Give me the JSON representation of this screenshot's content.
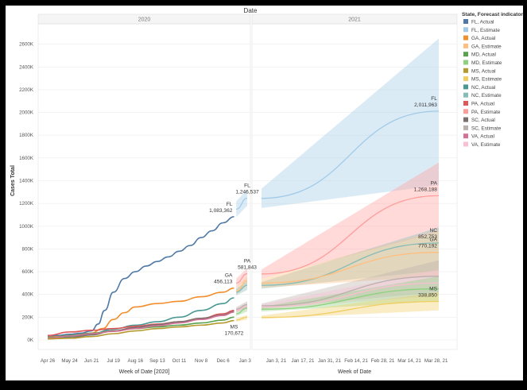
{
  "chart_data": {
    "type": "line",
    "title": "Date",
    "ylabel": "Cases Total",
    "ylim": [
      0,
      2800000
    ],
    "yticks": [
      0,
      200000,
      400000,
      600000,
      800000,
      1000000,
      1200000,
      1400000,
      1600000,
      1800000,
      2000000,
      2200000,
      2400000,
      2600000
    ],
    "ytick_labels": [
      "0K",
      "200K",
      "400K",
      "600K",
      "800K",
      "1000K",
      "1200K",
      "1400K",
      "1600K",
      "1800K",
      "2000K",
      "2200K",
      "2400K",
      "2600K"
    ],
    "panels": [
      {
        "header": "2020",
        "xlabel": "Week of Date [2020]",
        "x_ticks": [
          "Apr 26",
          "May 24",
          "Jun 21",
          "Jul 19",
          "Aug 16",
          "Sep 13",
          "Oct 11",
          "Nov 8",
          "Dec 6",
          "Jan 3"
        ],
        "xlim": [
          0,
          9.1
        ]
      },
      {
        "header": "2021",
        "xlabel": "Week of Date",
        "x_ticks": [
          "Jan 3, 21",
          "Jan 17, 21",
          "Jan 31, 21",
          "Feb 14, 21",
          "Feb 28, 21",
          "Mar 14, 21",
          "Mar 28, 21"
        ],
        "xlim": [
          -0.55,
          6.25
        ]
      }
    ],
    "legend_title": "State, Forecast indicator",
    "legend": [
      {
        "label": "FL, Actual",
        "color": "#4e79a7"
      },
      {
        "label": "FL, Estimate",
        "color": "#a0cbe8"
      },
      {
        "label": "GA, Actual",
        "color": "#f28e2b"
      },
      {
        "label": "GA, Estimate",
        "color": "#ffbe7d"
      },
      {
        "label": "MD, Actual",
        "color": "#59a14f"
      },
      {
        "label": "MD, Estimate",
        "color": "#8cd17d"
      },
      {
        "label": "MS, Actual",
        "color": "#b6992d"
      },
      {
        "label": "MS, Estimate",
        "color": "#f1ce63"
      },
      {
        "label": "NC, Actual",
        "color": "#499894"
      },
      {
        "label": "NC, Estimate",
        "color": "#86bcb6"
      },
      {
        "label": "PA, Actual",
        "color": "#e15759"
      },
      {
        "label": "PA, Estimate",
        "color": "#ff9d9a"
      },
      {
        "label": "SC, Actual",
        "color": "#79706e"
      },
      {
        "label": "SC, Estimate",
        "color": "#bab0ac"
      },
      {
        "label": "VA, Actual",
        "color": "#d37295"
      },
      {
        "label": "VA, Estimate",
        "color": "#fabfd2"
      }
    ],
    "series": [
      {
        "state": "FL",
        "kind": "actual",
        "panel": 0,
        "color": "#4e79a7",
        "x": [
          0,
          0.5,
          1,
          1.5,
          2,
          2.3,
          2.6,
          3,
          3.5,
          4,
          4.5,
          5,
          5.5,
          6,
          6.5,
          7,
          7.5,
          8,
          8.5
        ],
        "y": [
          30000,
          40000,
          50000,
          60000,
          80000,
          140000,
          260000,
          420000,
          540000,
          600000,
          650000,
          690000,
          730000,
          780000,
          830000,
          900000,
          960000,
          1030000,
          1083362
        ]
      },
      {
        "state": "GA",
        "kind": "actual",
        "panel": 0,
        "color": "#f28e2b",
        "x": [
          0,
          1,
          2,
          2.5,
          3,
          3.5,
          4,
          5,
          6,
          7,
          8,
          8.5
        ],
        "y": [
          25000,
          35000,
          60000,
          100000,
          180000,
          240000,
          290000,
          320000,
          340000,
          380000,
          420000,
          456113
        ]
      },
      {
        "state": "NC",
        "kind": "actual",
        "panel": 0,
        "color": "#499894",
        "x": [
          0,
          1,
          2,
          3,
          4,
          5,
          6,
          7,
          8,
          8.5
        ],
        "y": [
          20000,
          30000,
          55000,
          95000,
          130000,
          160000,
          200000,
          260000,
          320000,
          370000
        ]
      },
      {
        "state": "PA",
        "kind": "actual",
        "panel": 0,
        "color": "#e15759",
        "x": [
          0,
          1,
          2,
          3,
          4,
          5,
          6,
          7,
          8,
          8.5
        ],
        "y": [
          40000,
          70000,
          85000,
          100000,
          120000,
          140000,
          160000,
          190000,
          230000,
          260000
        ]
      },
      {
        "state": "MD",
        "kind": "actual",
        "panel": 0,
        "color": "#59a14f",
        "x": [
          0,
          1,
          2,
          3,
          4,
          5,
          6,
          7,
          8,
          8.5
        ],
        "y": [
          15000,
          40000,
          60000,
          80000,
          100000,
          115000,
          130000,
          150000,
          175000,
          200000
        ]
      },
      {
        "state": "SC",
        "kind": "actual",
        "panel": 0,
        "color": "#79706e",
        "x": [
          0,
          1,
          2,
          3,
          4,
          5,
          6,
          7,
          8,
          8.5
        ],
        "y": [
          10000,
          20000,
          45000,
          80000,
          110000,
          135000,
          160000,
          190000,
          220000,
          250000
        ]
      },
      {
        "state": "VA",
        "kind": "actual",
        "panel": 0,
        "color": "#d37295",
        "x": [
          0,
          1,
          2,
          3,
          4,
          5,
          6,
          7,
          8,
          8.5
        ],
        "y": [
          15000,
          35000,
          55000,
          75000,
          100000,
          125000,
          150000,
          180000,
          215000,
          245000
        ]
      },
      {
        "state": "MS",
        "kind": "actual",
        "panel": 0,
        "color": "#b6992d",
        "x": [
          0,
          1,
          2,
          3,
          4,
          5,
          6,
          7,
          8,
          8.5
        ],
        "y": [
          10000,
          15000,
          30000,
          55000,
          80000,
          100000,
          115000,
          130000,
          150000,
          170672
        ]
      },
      {
        "state": "FL",
        "kind": "estimate",
        "panel": 0,
        "color": "#a0cbe8",
        "x": [
          8.6,
          9.1
        ],
        "y": [
          1150000,
          1246537
        ],
        "lo": [
          1080000,
          1180000
        ],
        "hi": [
          1220000,
          1320000
        ]
      },
      {
        "state": "PA",
        "kind": "estimate",
        "panel": 0,
        "color": "#ff9d9a",
        "x": [
          8.6,
          9.1
        ],
        "y": [
          500000,
          581843
        ],
        "lo": [
          460000,
          530000
        ],
        "hi": [
          540000,
          630000
        ]
      },
      {
        "state": "GA",
        "kind": "estimate",
        "panel": 0,
        "color": "#ffbe7d",
        "x": [
          8.6,
          9.1
        ],
        "y": [
          430000,
          520000
        ],
        "lo": [
          400000,
          480000
        ],
        "hi": [
          460000,
          560000
        ]
      },
      {
        "state": "NC",
        "kind": "estimate",
        "panel": 0,
        "color": "#86bcb6",
        "x": [
          8.6,
          9.1
        ],
        "y": [
          420000,
          480000
        ],
        "lo": [
          390000,
          440000
        ],
        "hi": [
          450000,
          520000
        ]
      },
      {
        "state": "MD",
        "kind": "estimate",
        "panel": 0,
        "color": "#8cd17d",
        "x": [
          8.6,
          9.1
        ],
        "y": [
          230000,
          280000
        ],
        "lo": [
          210000,
          250000
        ],
        "hi": [
          250000,
          300000
        ]
      },
      {
        "state": "VA",
        "kind": "estimate",
        "panel": 0,
        "color": "#fabfd2",
        "x": [
          8.6,
          9.1
        ],
        "y": [
          260000,
          300000
        ],
        "lo": [
          240000,
          270000
        ],
        "hi": [
          280000,
          330000
        ]
      },
      {
        "state": "SC",
        "kind": "estimate",
        "panel": 0,
        "color": "#bab0ac",
        "x": [
          8.6,
          9.1
        ],
        "y": [
          270000,
          310000
        ],
        "lo": [
          250000,
          280000
        ],
        "hi": [
          290000,
          340000
        ]
      },
      {
        "state": "MS",
        "kind": "estimate",
        "panel": 0,
        "color": "#f1ce63",
        "x": [
          8.6,
          9.1
        ],
        "y": [
          175000,
          200000
        ],
        "lo": [
          160000,
          180000
        ],
        "hi": [
          190000,
          220000
        ]
      },
      {
        "state": "FL",
        "kind": "estimate",
        "panel": 1,
        "color": "#a0cbe8",
        "x": [
          -0.55,
          6.1
        ],
        "y": [
          1245000,
          2011963
        ],
        "lo": [
          1160000,
          1360000
        ],
        "hi": [
          1330000,
          2650000
        ]
      },
      {
        "state": "PA",
        "kind": "estimate",
        "panel": 1,
        "color": "#ff9d9a",
        "x": [
          -0.55,
          6.1
        ],
        "y": [
          580000,
          1268188
        ],
        "lo": [
          540000,
          950000
        ],
        "hi": [
          620000,
          1560000
        ]
      },
      {
        "state": "NC",
        "kind": "estimate",
        "panel": 1,
        "color": "#86bcb6",
        "x": [
          -0.55,
          6.1
        ],
        "y": [
          480000,
          852753
        ],
        "lo": [
          450000,
          610000
        ],
        "hi": [
          510000,
          990000
        ]
      },
      {
        "state": "GA",
        "kind": "estimate",
        "panel": 1,
        "color": "#ffbe7d",
        "x": [
          -0.55,
          6.1
        ],
        "y": [
          500000,
          770192
        ],
        "lo": [
          460000,
          560000
        ],
        "hi": [
          540000,
          960000
        ]
      },
      {
        "state": "SC",
        "kind": "estimate",
        "panel": 1,
        "color": "#bab0ac",
        "x": [
          -0.55,
          6.1
        ],
        "y": [
          300000,
          560000
        ],
        "lo": [
          280000,
          420000
        ],
        "hi": [
          320000,
          700000
        ]
      },
      {
        "state": "VA",
        "kind": "estimate",
        "panel": 1,
        "color": "#fabfd2",
        "x": [
          -0.55,
          6.1
        ],
        "y": [
          290000,
          500000
        ],
        "lo": [
          270000,
          390000
        ],
        "hi": [
          310000,
          620000
        ]
      },
      {
        "state": "MD",
        "kind": "estimate",
        "panel": 1,
        "color": "#8cd17d",
        "x": [
          -0.55,
          6.1
        ],
        "y": [
          270000,
          450000
        ],
        "lo": [
          250000,
          340000
        ],
        "hi": [
          290000,
          560000
        ]
      },
      {
        "state": "MS",
        "kind": "estimate",
        "panel": 1,
        "color": "#f1ce63",
        "x": [
          -0.55,
          6.1
        ],
        "y": [
          198000,
          338850
        ],
        "lo": [
          185000,
          260000
        ],
        "hi": [
          215000,
          420000
        ]
      }
    ],
    "annotations": [
      {
        "panel": 0,
        "x": 8.5,
        "y": 1083362,
        "state": "FL",
        "value": "1,083,362",
        "anchor": "end"
      },
      {
        "panel": 0,
        "x": 8.5,
        "y": 456113,
        "state": "GA",
        "value": "456,113",
        "anchor": "end"
      },
      {
        "panel": 0,
        "x": 8.5,
        "y": 170672,
        "state": "MS",
        "value": "170,672",
        "anchor": "middle",
        "below": true
      },
      {
        "panel": 0,
        "x": 9.1,
        "y": 1246537,
        "state": "FL",
        "value": "1,246,537",
        "anchor": "middle"
      },
      {
        "panel": 0,
        "x": 9.1,
        "y": 581843,
        "state": "PA",
        "value": "581,843",
        "anchor": "middle"
      },
      {
        "panel": 1,
        "x": 6.1,
        "y": 2011963,
        "state": "FL",
        "value": "2,011,963",
        "anchor": "end"
      },
      {
        "panel": 1,
        "x": 6.1,
        "y": 1268188,
        "state": "PA",
        "value": "1,268,188",
        "anchor": "end"
      },
      {
        "panel": 1,
        "x": 6.1,
        "y": 852753,
        "state": "NC",
        "value": "852,753",
        "anchor": "end"
      },
      {
        "panel": 1,
        "x": 6.1,
        "y": 770192,
        "state": "GA",
        "value": "770,192",
        "anchor": "end"
      },
      {
        "panel": 1,
        "x": 6.1,
        "y": 338850,
        "state": "MS",
        "value": "338,850",
        "anchor": "end"
      }
    ]
  }
}
